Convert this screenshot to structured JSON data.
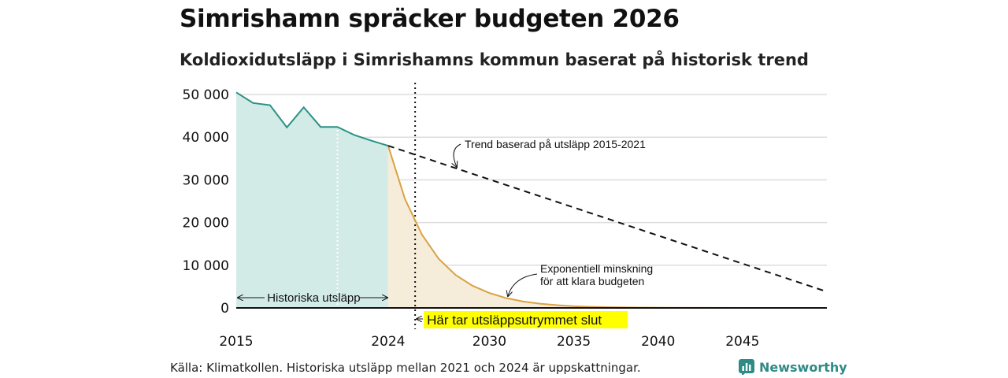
{
  "title": "Simrishamn spräcker budgeten 2026",
  "subtitle": "Koldioxidutsläpp i Simrishamns kommun baserat på historisk trend",
  "source": "Källa: Klimatkollen. Historiska utsläpp mellan 2021 och 2024 är uppskattningar.",
  "brand": "Newsworthy",
  "colors": {
    "historical_line": "#2a9187",
    "historical_fill": "#d2ebe7",
    "budget_line": "#d9a244",
    "budget_fill": "#f6ecda",
    "trend_line": "#111111",
    "grid": "#dddddd",
    "highlight": "#ffff00",
    "brand": "#2e8b86"
  },
  "chart_data": {
    "type": "line",
    "xlim": [
      2015,
      2050
    ],
    "ylim": [
      0,
      50000
    ],
    "xticks": [
      {
        "value": 2015,
        "label": "2015"
      },
      {
        "value": 2024,
        "label": "2024"
      },
      {
        "value": 2030,
        "label": "2030"
      },
      {
        "value": 2035,
        "label": "2035"
      },
      {
        "value": 2040,
        "label": "2040"
      },
      {
        "value": 2045,
        "label": "2045"
      }
    ],
    "yticks": [
      {
        "value": 0,
        "label": "0"
      },
      {
        "value": 10000,
        "label": "10 000"
      },
      {
        "value": 20000,
        "label": "20 000"
      },
      {
        "value": 30000,
        "label": "30 000"
      },
      {
        "value": 40000,
        "label": "40 000"
      },
      {
        "value": 50000,
        "label": "50 000"
      }
    ],
    "series": [
      {
        "name": "Historiska utsläpp",
        "style": "solid-area",
        "x": [
          2015,
          2016,
          2017,
          2018,
          2019,
          2020,
          2021,
          2022,
          2023,
          2024
        ],
        "y": [
          50500,
          48000,
          47500,
          42300,
          47000,
          42400,
          42400,
          40500,
          39200,
          38000
        ]
      },
      {
        "name": "Exponentiell minskning för att klara budgeten",
        "style": "solid-area",
        "x": [
          2024,
          2025,
          2026,
          2027,
          2028,
          2029,
          2030,
          2031,
          2032,
          2033,
          2034,
          2035,
          2036,
          2037,
          2038,
          2039,
          2040,
          2042,
          2045,
          2050
        ],
        "y": [
          38000,
          25500,
          17200,
          11500,
          7700,
          5200,
          3500,
          2300,
          1500,
          1000,
          650,
          400,
          250,
          170,
          110,
          70,
          50,
          20,
          10,
          0
        ]
      },
      {
        "name": "Trend baserad på utsläpp 2015-2021",
        "style": "dashed",
        "x": [
          2024,
          2050
        ],
        "y": [
          38000,
          3800
        ]
      }
    ],
    "vlines": [
      {
        "x": 2021,
        "style": "dotted-white"
      },
      {
        "x": 2025.6,
        "style": "dotted-black"
      }
    ],
    "annotations": {
      "historical_span": {
        "text": "Historiska utsläpp",
        "x_start": 2015,
        "x_end": 2024
      },
      "trend_label": {
        "text": "Trend baserad på utsläpp 2015-2021",
        "x": 2027.8,
        "y": 32500
      },
      "exp_label_lines": [
        "Exponentiell minskning",
        "för att klara budgeten"
      ],
      "exp_target": {
        "x": 2031,
        "y": 2300
      },
      "budget_end": {
        "text": "Här tar utsläppsutrymmet slut",
        "x": 2025.6
      }
    }
  }
}
